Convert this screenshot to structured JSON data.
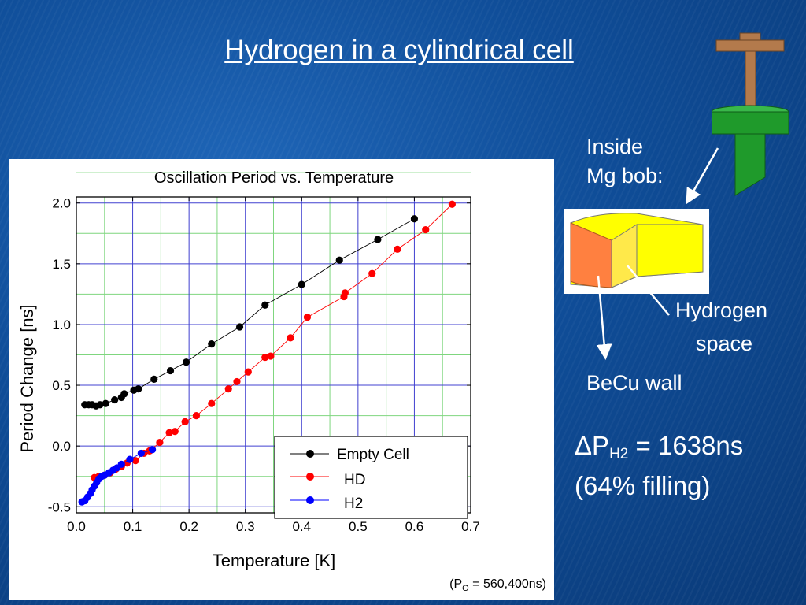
{
  "slide": {
    "title": "Hydrogen in a cylindrical cell",
    "inside_label_1": "Inside",
    "inside_label_2": "Mg bob:",
    "hydrogen_label_1": "Hydrogen",
    "hydrogen_label_2": "space",
    "becu_label": "BeCu wall",
    "formula_delta": "ΔP",
    "formula_sub": "H2",
    "formula_value": " = 1638ns",
    "formula_note": "(64% filling)",
    "footnote_prefix": "(P",
    "footnote_sub": "O",
    "footnote_suffix": " = 560,400ns)"
  },
  "colors": {
    "empty_cell": "#000000",
    "hd": "#ff0000",
    "h2": "#0000ff",
    "grid_minor": "#7fd67f",
    "grid_major": "#4040d0",
    "cheese_face": "#ffff00",
    "cheese_wall": "#ff8040",
    "bar_wood": "#b37a4c",
    "bar_green": "#1f9a2b"
  },
  "chart_data": {
    "type": "line",
    "title": "Oscillation Period vs. Temperature",
    "xlabel": "Temperature [K]",
    "ylabel": "Period Change [ns]",
    "xlim": [
      0.0,
      0.7
    ],
    "ylim": [
      -0.55,
      2.05
    ],
    "xticks": [
      "0.0",
      "0.1",
      "0.2",
      "0.3",
      "0.4",
      "0.5",
      "0.6",
      "0.7"
    ],
    "yticks": [
      "-0.5",
      "0.0",
      "0.5",
      "1.0",
      "1.5",
      "2.0"
    ],
    "grid": true,
    "legend_position": "bottom-right",
    "series": [
      {
        "name": "Empty Cell",
        "x": [
          0.015,
          0.022,
          0.028,
          0.035,
          0.042,
          0.052,
          0.068,
          0.08,
          0.085,
          0.102,
          0.11,
          0.138,
          0.167,
          0.195,
          0.24,
          0.29,
          0.335,
          0.4,
          0.467,
          0.535,
          0.6
        ],
        "y": [
          0.34,
          0.34,
          0.34,
          0.33,
          0.34,
          0.35,
          0.38,
          0.4,
          0.43,
          0.46,
          0.47,
          0.55,
          0.62,
          0.69,
          0.84,
          0.98,
          1.16,
          1.33,
          1.53,
          1.7,
          1.87
        ]
      },
      {
        "name": "HD",
        "x": [
          0.032,
          0.04,
          0.05,
          0.06,
          0.07,
          0.08,
          0.09,
          0.105,
          0.12,
          0.13,
          0.148,
          0.165,
          0.175,
          0.193,
          0.213,
          0.24,
          0.27,
          0.285,
          0.305,
          0.335,
          0.345,
          0.38,
          0.41,
          0.475,
          0.477,
          0.525,
          0.57,
          0.62,
          0.667
        ],
        "y": [
          -0.26,
          -0.25,
          -0.24,
          -0.22,
          -0.19,
          -0.17,
          -0.14,
          -0.12,
          -0.06,
          -0.04,
          0.03,
          0.11,
          0.12,
          0.2,
          0.25,
          0.35,
          0.47,
          0.53,
          0.61,
          0.73,
          0.74,
          0.89,
          1.06,
          1.23,
          1.26,
          1.42,
          1.62,
          1.78,
          1.99
        ]
      },
      {
        "name": "H2",
        "x": [
          0.01,
          0.015,
          0.02,
          0.025,
          0.028,
          0.032,
          0.036,
          0.04,
          0.045,
          0.05,
          0.058,
          0.065,
          0.072,
          0.08,
          0.095,
          0.115,
          0.135
        ],
        "y": [
          -0.46,
          -0.45,
          -0.42,
          -0.39,
          -0.36,
          -0.33,
          -0.3,
          -0.27,
          -0.25,
          -0.24,
          -0.22,
          -0.2,
          -0.18,
          -0.15,
          -0.11,
          -0.06,
          -0.03
        ]
      }
    ]
  }
}
